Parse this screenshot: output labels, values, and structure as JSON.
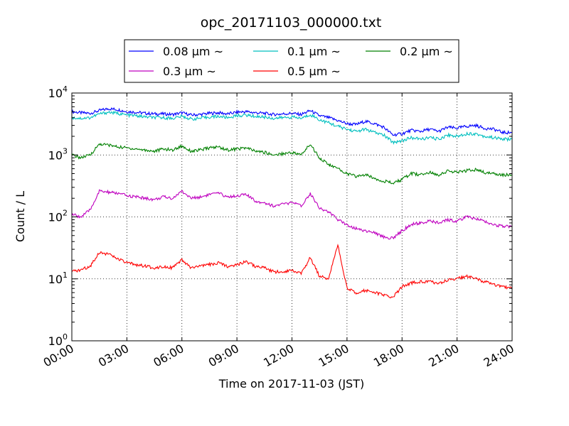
{
  "chart_data": {
    "type": "line",
    "title": "opc_20171103_000000.txt",
    "xlabel": "Time on 2017-11-03 (JST)",
    "ylabel": "Count / L",
    "x_unit": "hours",
    "xlim": [
      0,
      24
    ],
    "ylim": [
      1,
      10000
    ],
    "y_scale": "log",
    "grid": true,
    "legend_position": "top-center",
    "x_ticks": [
      {
        "value": 0,
        "label": "00:00"
      },
      {
        "value": 3,
        "label": "03:00"
      },
      {
        "value": 6,
        "label": "06:00"
      },
      {
        "value": 9,
        "label": "09:00"
      },
      {
        "value": 12,
        "label": "12:00"
      },
      {
        "value": 15,
        "label": "15:00"
      },
      {
        "value": 18,
        "label": "18:00"
      },
      {
        "value": 21,
        "label": "21:00"
      },
      {
        "value": 24,
        "label": "24:00"
      }
    ],
    "y_ticks": [
      {
        "value": 1,
        "base": "10",
        "exp": "0"
      },
      {
        "value": 10,
        "base": "10",
        "exp": "1"
      },
      {
        "value": 100,
        "base": "10",
        "exp": "2"
      },
      {
        "value": 1000,
        "base": "10",
        "exp": "3"
      },
      {
        "value": 10000,
        "base": "10",
        "exp": "4"
      }
    ],
    "x": [
      0,
      0.5,
      1,
      1.5,
      2,
      2.5,
      3,
      3.5,
      4,
      4.5,
      5,
      5.5,
      6,
      6.5,
      7,
      7.5,
      8,
      8.5,
      9,
      9.5,
      10,
      10.5,
      11,
      11.5,
      12,
      12.5,
      13,
      13.5,
      14,
      14.5,
      15,
      15.5,
      16,
      16.5,
      17,
      17.5,
      18,
      18.5,
      19,
      19.5,
      20,
      20.5,
      21,
      21.5,
      22,
      22.5,
      23,
      23.5,
      24
    ],
    "series": [
      {
        "name": "0.08 µm ~",
        "color": "#0000ff",
        "values": [
          5000,
          4800,
          4700,
          5200,
          5600,
          5400,
          5000,
          4900,
          4700,
          4600,
          4600,
          4500,
          4800,
          4400,
          4500,
          4700,
          4800,
          4600,
          4900,
          5000,
          4800,
          4700,
          4500,
          4600,
          4700,
          4500,
          5200,
          4300,
          4000,
          3600,
          3200,
          3100,
          3500,
          3200,
          2800,
          2100,
          2200,
          2500,
          2400,
          2600,
          2400,
          2800,
          2700,
          2900,
          3000,
          2700,
          2600,
          2300,
          2300
        ]
      },
      {
        "name": "0.1 µm ~",
        "color": "#00bfbf",
        "values": [
          4000,
          3900,
          4000,
          4600,
          4900,
          4700,
          4400,
          4300,
          4100,
          4000,
          4000,
          3900,
          4200,
          3800,
          3900,
          4100,
          4200,
          4000,
          4300,
          4400,
          4200,
          4100,
          3900,
          4000,
          4100,
          3900,
          4500,
          3700,
          3300,
          2900,
          2600,
          2400,
          2600,
          2300,
          2100,
          1600,
          1700,
          1900,
          1800,
          1900,
          1800,
          2100,
          2000,
          2200,
          2200,
          2000,
          1900,
          1800,
          1800
        ]
      },
      {
        "name": "0.2 µm ~",
        "color": "#008000",
        "values": [
          1000,
          900,
          1000,
          1500,
          1450,
          1350,
          1300,
          1250,
          1200,
          1150,
          1250,
          1200,
          1400,
          1150,
          1200,
          1300,
          1350,
          1200,
          1250,
          1300,
          1150,
          1100,
          1000,
          1050,
          1100,
          1000,
          1500,
          900,
          700,
          600,
          500,
          450,
          480,
          420,
          380,
          350,
          400,
          500,
          480,
          520,
          480,
          550,
          520,
          560,
          580,
          520,
          500,
          480,
          470
        ]
      },
      {
        "name": "0.3 µm ~",
        "color": "#bf00bf",
        "values": [
          110,
          100,
          130,
          260,
          250,
          240,
          220,
          210,
          200,
          190,
          210,
          200,
          260,
          200,
          210,
          230,
          240,
          210,
          220,
          230,
          180,
          170,
          150,
          160,
          170,
          150,
          240,
          140,
          120,
          90,
          75,
          65,
          60,
          55,
          48,
          45,
          60,
          75,
          80,
          85,
          80,
          90,
          85,
          100,
          95,
          85,
          75,
          70,
          70
        ]
      },
      {
        "name": "0.5 µm ~",
        "color": "#ff0000",
        "values": [
          13,
          14,
          16,
          27,
          25,
          21,
          18,
          17,
          16,
          15,
          16,
          15,
          20,
          15,
          16,
          17,
          18,
          16,
          17,
          19,
          16,
          15,
          13,
          13,
          14,
          12,
          22,
          11,
          10,
          36,
          7,
          6,
          6.5,
          6,
          5.5,
          5,
          7.5,
          8.5,
          9,
          9,
          8.5,
          9.5,
          10,
          11,
          10,
          9,
          8,
          7.5,
          7
        ]
      }
    ]
  }
}
